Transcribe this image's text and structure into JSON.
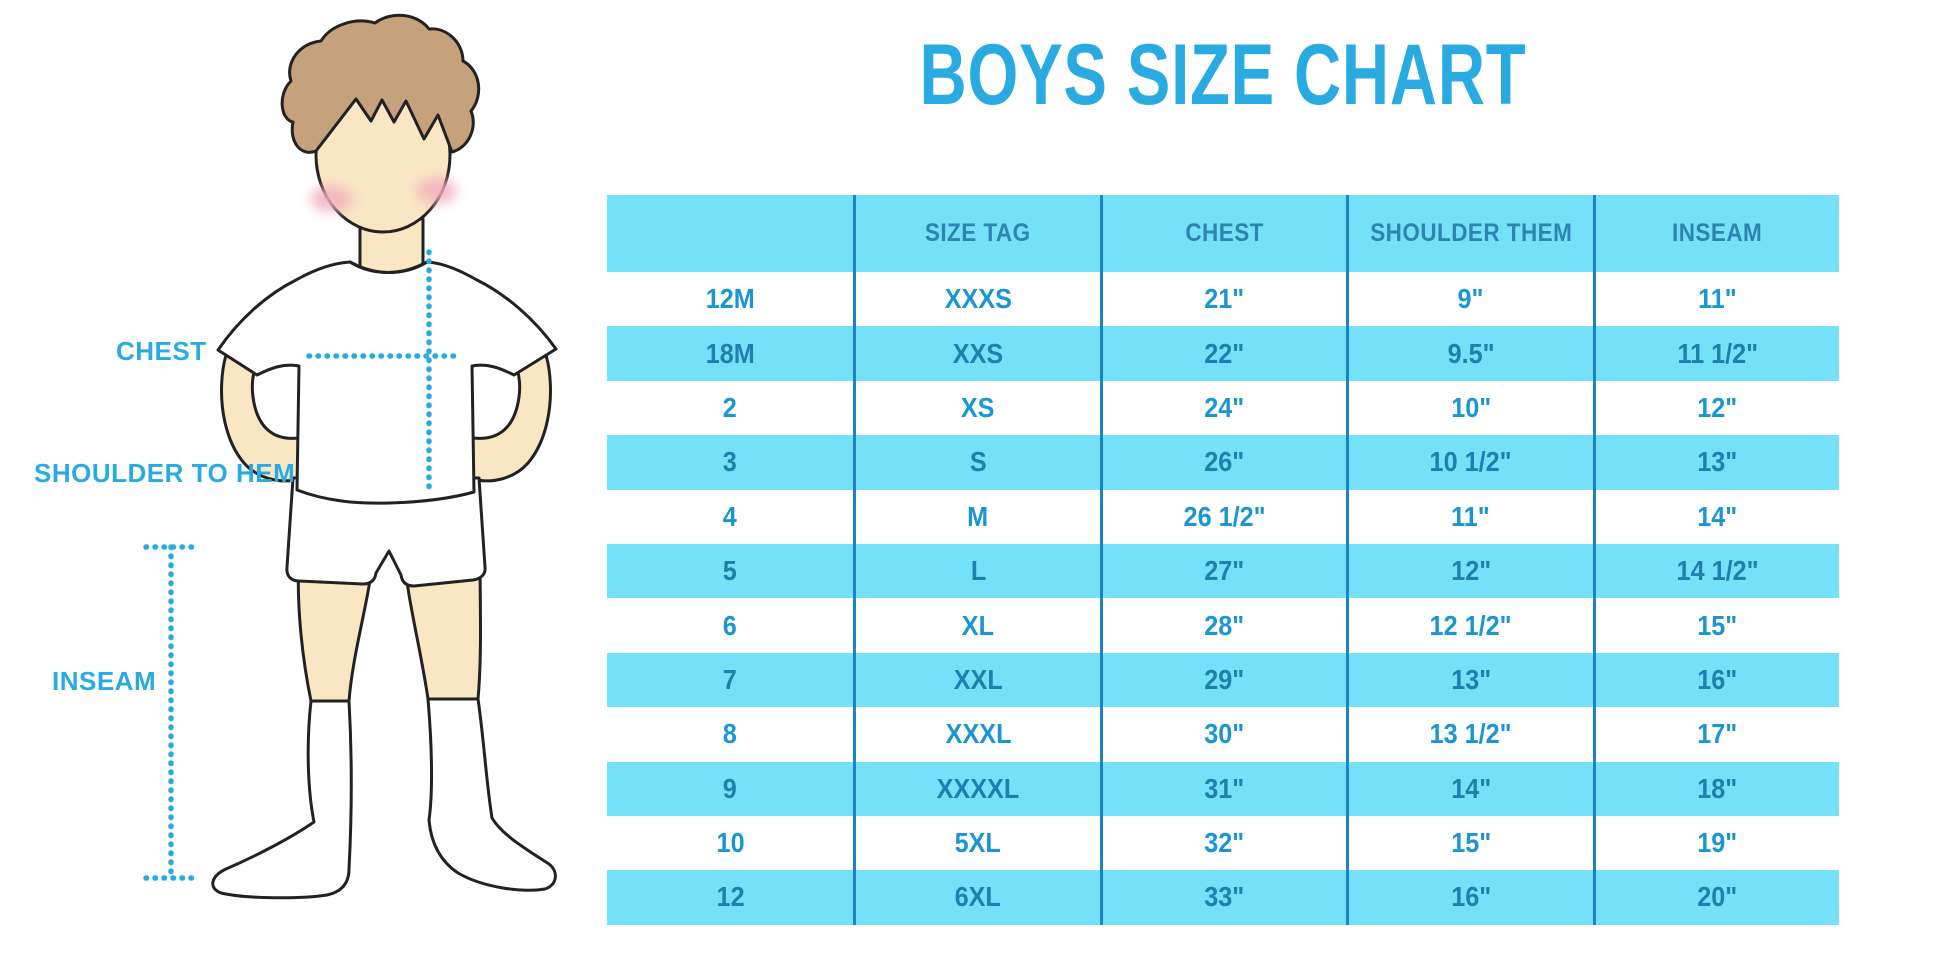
{
  "title": {
    "text": "BOYS SIZE CHART",
    "color": "#29abe2"
  },
  "figure": {
    "illustration": "boy-standing-front",
    "labels": [
      {
        "id": "chest",
        "text": "CHEST"
      },
      {
        "id": "shoulder_to_hem",
        "text": "SHOULDER TO HEM"
      },
      {
        "id": "inseam",
        "text": "INSEAM"
      }
    ],
    "colors": {
      "hair": "#c5a27b",
      "skin": "#f9e6c3",
      "blush": "#f2afc0",
      "outline": "#222222",
      "clothes": "#ffffff",
      "measure_dots": "#29abe2"
    }
  },
  "table_style": {
    "stripe_bg": "#74e1f9",
    "white_bg": "#ffffff",
    "divider_color": "#1a85c2",
    "header_text_color": "#2b85b0",
    "white_row_text_color": "#1b96d2",
    "blue_row_text_color": "#1f7fae"
  },
  "chart_data": {
    "type": "table",
    "title": "BOYS SIZE CHART",
    "columns": [
      "",
      "SIZE TAG",
      "CHEST",
      "SHOULDER THEM",
      "INSEAM"
    ],
    "rows": [
      [
        "12M",
        "XXXS",
        "21\"",
        "9\"",
        "11\""
      ],
      [
        "18M",
        "XXS",
        "22\"",
        "9.5\"",
        "11 1/2\""
      ],
      [
        "2",
        "XS",
        "24\"",
        "10\"",
        "12\""
      ],
      [
        "3",
        "S",
        "26\"",
        "10 1/2\"",
        "13\""
      ],
      [
        "4",
        "M",
        "26 1/2\"",
        "11\"",
        "14\""
      ],
      [
        "5",
        "L",
        "27\"",
        "12\"",
        "14 1/2\""
      ],
      [
        "6",
        "XL",
        "28\"",
        "12 1/2\"",
        "15\""
      ],
      [
        "7",
        "XXL",
        "29\"",
        "13\"",
        "16\""
      ],
      [
        "8",
        "XXXL",
        "30\"",
        "13 1/2\"",
        "17\""
      ],
      [
        "9",
        "XXXXL",
        "31\"",
        "14\"",
        "18\""
      ],
      [
        "10",
        "5XL",
        "32\"",
        "15\"",
        "19\""
      ],
      [
        "12",
        "6XL",
        "33\"",
        "16\"",
        "20\""
      ]
    ]
  }
}
